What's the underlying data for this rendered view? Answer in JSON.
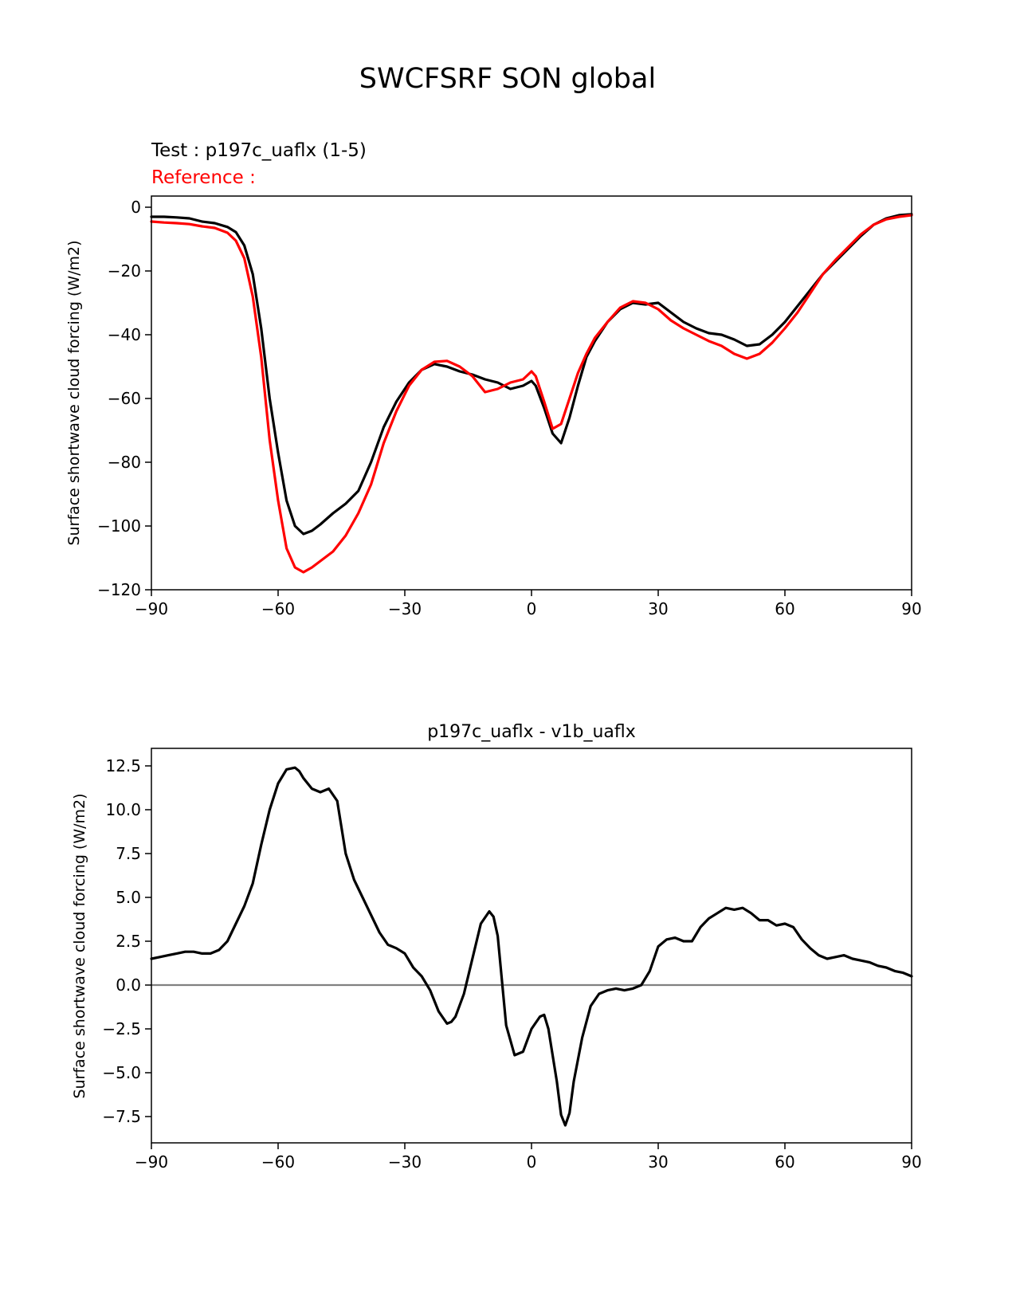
{
  "figure": {
    "title": "SWCFSRF SON global"
  },
  "colors": {
    "test_line": "#000000",
    "reference_line": "#ff0000",
    "zero_line": "#808080",
    "axes": "#000000",
    "background": "#ffffff"
  },
  "chart_data": [
    {
      "type": "line",
      "test_label": "Test : p197c_uaflx (1-5)",
      "reference_label": "Reference :",
      "xlabel": "",
      "ylabel": "Surface shortwave cloud forcing (W/m2)",
      "xlim": [
        -90,
        90
      ],
      "ylim": [
        -120,
        3.5
      ],
      "x_ticks": [
        -90,
        -60,
        -30,
        0,
        30,
        60,
        90
      ],
      "x_tick_labels": [
        "−90",
        "−60",
        "−30",
        "0",
        "30",
        "60",
        "90"
      ],
      "y_ticks": [
        0,
        -20,
        -40,
        -60,
        -80,
        -100,
        -120
      ],
      "y_tick_labels": [
        "0",
        "−20",
        "−40",
        "−60",
        "−80",
        "−100",
        "−120"
      ],
      "grid": false,
      "series": [
        {
          "role": "test",
          "color": "#000000",
          "x": [
            -90,
            -87,
            -84,
            -81,
            -78,
            -75,
            -72,
            -70,
            -68,
            -66,
            -64,
            -62,
            -60,
            -58,
            -56,
            -54,
            -52,
            -50,
            -47,
            -44,
            -41,
            -38,
            -35,
            -32,
            -29,
            -26,
            -23,
            -20,
            -17,
            -14,
            -11,
            -8,
            -5,
            -2,
            0,
            1,
            3,
            5,
            7,
            9,
            11,
            13,
            15,
            18,
            21,
            24,
            27,
            30,
            33,
            36,
            39,
            42,
            45,
            48,
            51,
            54,
            57,
            60,
            63,
            66,
            69,
            72,
            75,
            78,
            81,
            84,
            87,
            90
          ],
          "y": [
            -3,
            -3,
            -3.2,
            -3.5,
            -4.5,
            -5,
            -6.2,
            -7.8,
            -12,
            -21,
            -38,
            -60,
            -77,
            -92,
            -100,
            -102.5,
            -101.5,
            -99.5,
            -96,
            -93,
            -89,
            -80,
            -69,
            -61,
            -55,
            -51,
            -49.2,
            -50,
            -51.5,
            -52.5,
            -54,
            -55,
            -57,
            -56,
            -54.5,
            -56,
            -63,
            -71,
            -74,
            -66,
            -56,
            -47,
            -42,
            -36,
            -32,
            -30,
            -30.5,
            -30,
            -33,
            -36,
            -38,
            -39.5,
            -40,
            -41.5,
            -43.5,
            -43,
            -40,
            -36,
            -31,
            -26,
            -21,
            -17,
            -13,
            -9,
            -5.5,
            -3.5,
            -2.5,
            -2.2
          ]
        },
        {
          "role": "reference",
          "color": "#ff0000",
          "x": [
            -90,
            -87,
            -84,
            -81,
            -78,
            -75,
            -72,
            -70,
            -68,
            -66,
            -64,
            -62,
            -60,
            -58,
            -56,
            -54,
            -52,
            -50,
            -47,
            -44,
            -41,
            -38,
            -35,
            -32,
            -29,
            -26,
            -23,
            -20,
            -17,
            -14,
            -11,
            -8,
            -5,
            -2,
            0,
            1,
            3,
            5,
            7,
            9,
            11,
            13,
            15,
            18,
            21,
            24,
            27,
            30,
            33,
            36,
            39,
            42,
            45,
            48,
            51,
            54,
            57,
            60,
            63,
            66,
            69,
            72,
            75,
            78,
            81,
            84,
            87,
            90
          ],
          "y": [
            -4.5,
            -4.8,
            -5,
            -5.3,
            -6,
            -6.5,
            -8,
            -10.5,
            -16,
            -28,
            -47,
            -73,
            -92,
            -107,
            -113,
            -114.5,
            -113,
            -111,
            -108,
            -103,
            -96,
            -87,
            -74,
            -64,
            -56,
            -51,
            -48.5,
            -48.2,
            -50,
            -53,
            -58,
            -57,
            -55,
            -54,
            -51.5,
            -53,
            -61,
            -69.5,
            -68,
            -60,
            -52,
            -46,
            -41,
            -36,
            -31.5,
            -29.5,
            -30,
            -32,
            -35.5,
            -38,
            -40,
            -42,
            -43.5,
            -46,
            -47.5,
            -46,
            -42.5,
            -38,
            -33,
            -27,
            -21,
            -16.5,
            -12.5,
            -8.5,
            -5.5,
            -3.8,
            -3,
            -2.5
          ]
        }
      ]
    },
    {
      "type": "line",
      "title": "p197c_uaflx - v1b_uaflx",
      "xlabel": "",
      "ylabel": "Surface shortwave cloud forcing (W/m2)",
      "xlim": [
        -90,
        90
      ],
      "ylim": [
        -9,
        13.5
      ],
      "x_ticks": [
        -90,
        -60,
        -30,
        0,
        30,
        60,
        90
      ],
      "x_tick_labels": [
        "−90",
        "−60",
        "−30",
        "0",
        "30",
        "60",
        "90"
      ],
      "y_ticks": [
        12.5,
        10.0,
        7.5,
        5.0,
        2.5,
        0.0,
        -2.5,
        -5.0,
        -7.5
      ],
      "y_tick_labels": [
        "12.5",
        "10.0",
        "7.5",
        "5.0",
        "2.5",
        "0.0",
        "−2.5",
        "−5.0",
        "−7.5"
      ],
      "grid": false,
      "reference_line_y": 0,
      "series": [
        {
          "role": "difference",
          "color": "#000000",
          "x": [
            -90,
            -88,
            -86,
            -84,
            -82,
            -80,
            -78,
            -76,
            -74,
            -72,
            -70,
            -68,
            -66,
            -64,
            -62,
            -60,
            -58,
            -56,
            -55,
            -54,
            -52,
            -50,
            -48,
            -46,
            -45,
            -44,
            -42,
            -40,
            -38,
            -36,
            -34,
            -32,
            -30,
            -28,
            -26,
            -24,
            -22,
            -20,
            -19,
            -18,
            -16,
            -14,
            -12,
            -10,
            -9,
            -8,
            -6,
            -4,
            -2,
            0,
            2,
            3,
            4,
            6,
            7,
            8,
            9,
            10,
            12,
            14,
            16,
            18,
            20,
            22,
            24,
            26,
            28,
            30,
            32,
            34,
            36,
            38,
            40,
            42,
            44,
            46,
            48,
            50,
            52,
            54,
            56,
            58,
            60,
            62,
            64,
            66,
            68,
            70,
            72,
            74,
            76,
            78,
            80,
            82,
            84,
            86,
            88,
            90
          ],
          "y": [
            1.5,
            1.6,
            1.7,
            1.8,
            1.9,
            1.9,
            1.8,
            1.8,
            2,
            2.5,
            3.5,
            4.5,
            5.8,
            8,
            10,
            11.5,
            12.3,
            12.4,
            12.2,
            11.8,
            11.2,
            11,
            11.2,
            10.5,
            9,
            7.5,
            6,
            5,
            4,
            3,
            2.3,
            2.1,
            1.8,
            1,
            0.5,
            -0.3,
            -1.5,
            -2.2,
            -2.1,
            -1.8,
            -0.5,
            1.5,
            3.5,
            4.2,
            3.9,
            2.8,
            -2.3,
            -4,
            -3.8,
            -2.5,
            -1.8,
            -1.7,
            -2.5,
            -5.5,
            -7.4,
            -8,
            -7.3,
            -5.5,
            -3,
            -1.2,
            -0.5,
            -0.3,
            -0.2,
            -0.3,
            -0.2,
            0,
            0.8,
            2.2,
            2.6,
            2.7,
            2.5,
            2.5,
            3.3,
            3.8,
            4.1,
            4.4,
            4.3,
            4.4,
            4.1,
            3.7,
            3.7,
            3.4,
            3.5,
            3.3,
            2.6,
            2.1,
            1.7,
            1.5,
            1.6,
            1.7,
            1.5,
            1.4,
            1.3,
            1.1,
            1.0,
            0.8,
            0.7,
            0.5
          ]
        }
      ]
    }
  ]
}
